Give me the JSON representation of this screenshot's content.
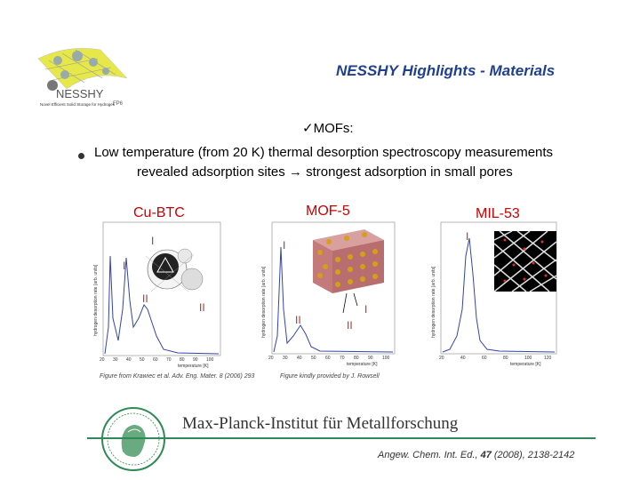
{
  "logo": {
    "text": "NESSHY",
    "subtitle": "Novel Efficient Solid Storage for Hydrogen",
    "mark": "FP6"
  },
  "header": {
    "title": "NESSHY Highlights - Materials"
  },
  "section": {
    "check": "ü",
    "label": "MOFs:"
  },
  "bullet": {
    "line1": "Low temperature (from 20 K) thermal desorption spectroscopy measurements",
    "line2": "revealed adsorption sites → strongest adsorption in small pores"
  },
  "panels": [
    {
      "label": "Cu-BTC",
      "ylabel": "hydrogen desorption rate [arb. units]",
      "xlabel": "temperature [K]",
      "xticks": [
        "20",
        "30",
        "40",
        "50",
        "60",
        "70",
        "80",
        "90",
        "100"
      ],
      "peaks": [
        "I",
        "I",
        "II",
        "II"
      ]
    },
    {
      "label": "MOF-5",
      "ylabel": "hydrogen desorption rate [arb. units]",
      "xlabel": "temperature [K]",
      "xticks": [
        "20",
        "30",
        "40",
        "50",
        "60",
        "70",
        "80",
        "90",
        "100"
      ],
      "peaks": [
        "I",
        "II",
        "I",
        "II"
      ]
    },
    {
      "label": "MIL-53",
      "ylabel": "hydrogen desorption rate [arb. units]",
      "xlabel": "temperature [K]",
      "xticks": [
        "20",
        "40",
        "60",
        "80",
        "100",
        "120"
      ],
      "peaks": [
        "I"
      ]
    }
  ],
  "credits": {
    "left": "Figure from Krawiec et al. Adv. Eng. Mater. 8 (2006) 293",
    "right": "Figure kindly provided by J. Rowsell"
  },
  "footer": {
    "institute": "Max-Planck-Institut für Metallforschung",
    "ref_journal": "Angew. Chem. Int. Ed.,",
    "ref_volume": "47",
    "ref_rest": "(2008), 2138-2142"
  },
  "colors": {
    "title": "#1f3f8f",
    "panel_label": "#cc0000",
    "divider": "#2e8b57",
    "curve": "#3344aa"
  }
}
